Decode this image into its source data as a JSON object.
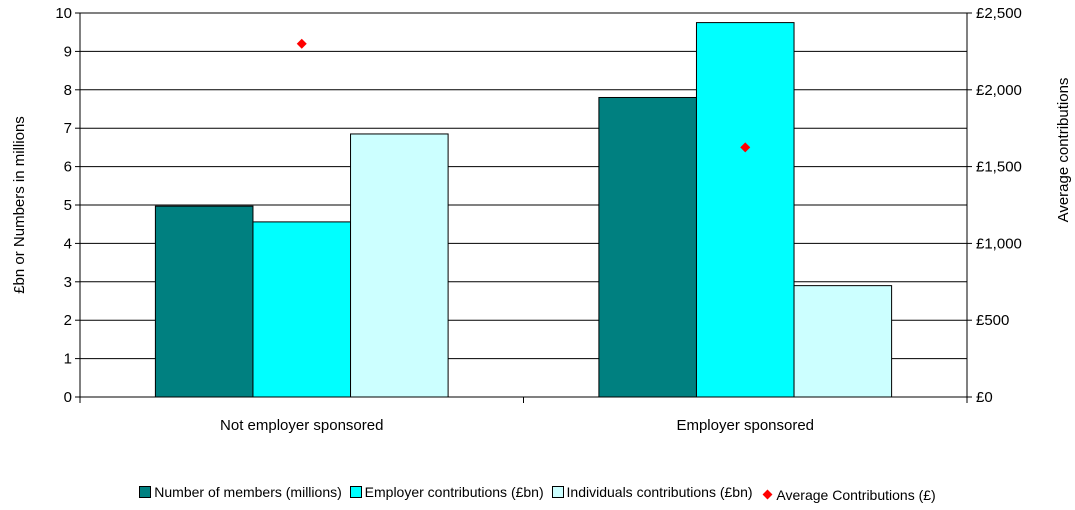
{
  "chart_data": {
    "type": "bar",
    "categories": [
      "Not employer sponsored",
      "Employer sponsored"
    ],
    "series": [
      {
        "name": "Number of members (millions)",
        "values": [
          4.97,
          7.8
        ],
        "color": "#008080",
        "axis": "left"
      },
      {
        "name": "Employer contributions (£bn)",
        "values": [
          4.56,
          9.75
        ],
        "color": "#00FFFF",
        "axis": "left"
      },
      {
        "name": "Individuals contributions (£bn)",
        "values": [
          6.85,
          2.9
        ],
        "color": "#CCFFFF",
        "axis": "left"
      }
    ],
    "scatter_series": {
      "name": "Average Contributions (£)",
      "values": [
        2300,
        1625
      ],
      "color": "#FF0000",
      "marker": "diamond",
      "axis": "right"
    },
    "ylabel": "£bn or Numbers in millions",
    "ylabel_right": "Average contributions",
    "ylim": [
      0,
      10
    ],
    "ylim_right": [
      0,
      2500
    ],
    "yticks": [
      "0",
      "1",
      "2",
      "3",
      "4",
      "5",
      "6",
      "7",
      "8",
      "9",
      "10"
    ],
    "yticks_right": [
      "£0",
      "£500",
      "£1,000",
      "£1,500",
      "£2,000",
      "£2,500"
    ],
    "grid": true,
    "legend_position": "bottom"
  }
}
